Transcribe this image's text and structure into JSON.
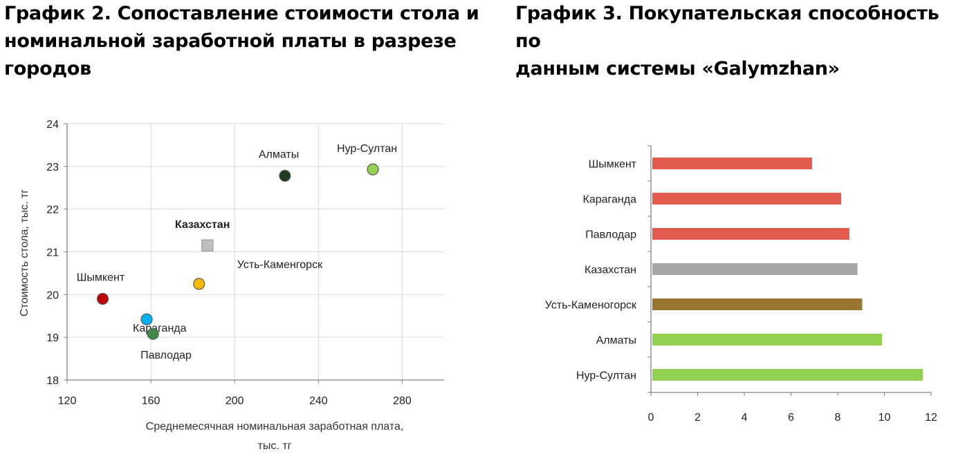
{
  "titles": {
    "left_line1": "График 2. Сопоставление стоимости стола и",
    "left_line2": "номинальной заработной платы в разрезе",
    "left_line3": "городов",
    "right_line1": "График 3. Покупательская способность по",
    "right_line2": "данным системы «Galymzhan»"
  },
  "chart_data": [
    {
      "type": "scatter",
      "title": "График 2. Сопоставление стоимости стола и номинальной заработной платы в разрезе городов",
      "xlabel_line1": "Среднемесячная номинальная заработная плата,",
      "xlabel_line2": "тыс. тг",
      "ylabel": "Стоимость стола, тыс. тг",
      "xlim": [
        120,
        300
      ],
      "ylim": [
        18,
        24
      ],
      "xticks": [
        "120",
        "160",
        "200",
        "240",
        "280"
      ],
      "yticks": [
        "18",
        "19",
        "20",
        "21",
        "22",
        "23",
        "24"
      ],
      "points": [
        {
          "label": "Шымкент",
          "x": 137,
          "y": 19.9,
          "color": "#c00000",
          "marker": "circle"
        },
        {
          "label": "Караганда",
          "x": 158,
          "y": 19.42,
          "color": "#00b0f0",
          "marker": "circle"
        },
        {
          "label": "Павлодар",
          "x": 161,
          "y": 19.08,
          "color": "#3d8b45",
          "marker": "circle"
        },
        {
          "label": "Усть-Каменгорск",
          "x": 183,
          "y": 20.25,
          "color": "#f5b800",
          "marker": "circle"
        },
        {
          "label": "Казахстан",
          "x": 187,
          "y": 21.15,
          "color": "#bfbfbf",
          "marker": "square",
          "bold": true
        },
        {
          "label": "Алматы",
          "x": 224,
          "y": 22.78,
          "color": "#1e3d23",
          "marker": "circle"
        },
        {
          "label": "Нур-Султан",
          "x": 266,
          "y": 22.93,
          "color": "#92d050",
          "marker": "circle"
        }
      ]
    },
    {
      "type": "bar",
      "orientation": "horizontal",
      "title": "График 3. Покупательская способность по данным системы «Galymzhan»",
      "xlim": [
        0,
        12
      ],
      "xticks": [
        "0",
        "2",
        "4",
        "6",
        "8",
        "10",
        "12"
      ],
      "categories": [
        "Шымкент",
        "Караганда",
        "Павлодар",
        "Казахстан",
        "Усть-Каменогорск",
        "Алматы",
        "Нур-Султан"
      ],
      "values": [
        6.9,
        8.15,
        8.5,
        8.85,
        9.05,
        9.9,
        11.65
      ],
      "colors": [
        "#e35a4f",
        "#e35a4f",
        "#e35a4f",
        "#a6a6a6",
        "#9a7530",
        "#92d050",
        "#92d050"
      ]
    }
  ]
}
